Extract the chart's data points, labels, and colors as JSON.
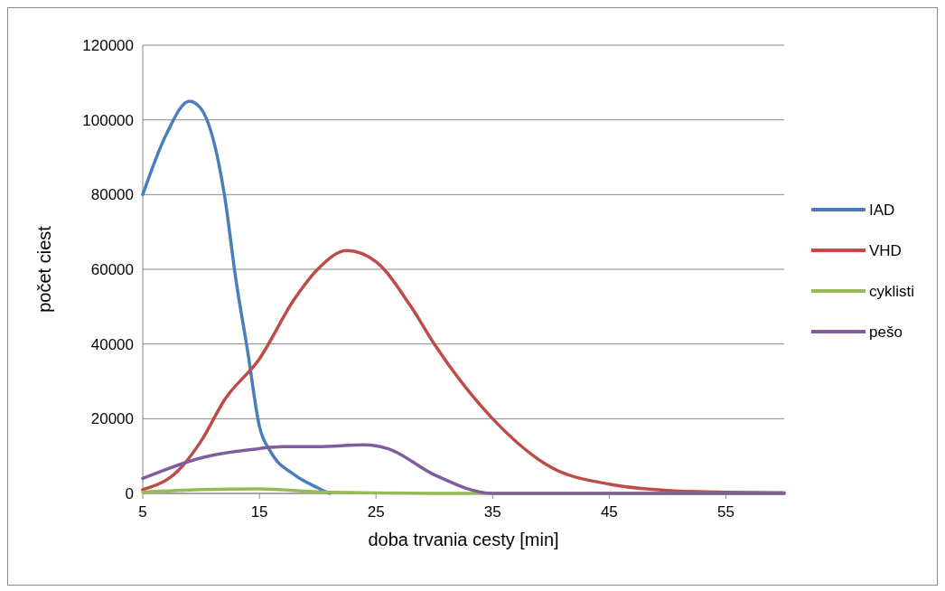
{
  "chart_data": {
    "type": "line",
    "xlabel": "doba trvania cesty [min]",
    "ylabel": "počet ciest",
    "xlim": [
      5,
      60
    ],
    "xticks": [
      5,
      15,
      25,
      35,
      45,
      55
    ],
    "ylim": [
      0,
      120000
    ],
    "yticks": [
      0,
      20000,
      40000,
      60000,
      80000,
      100000,
      120000
    ],
    "grid": "y",
    "legend": "right",
    "line_style": "solid",
    "marker": "none",
    "series": [
      {
        "name": "IAD",
        "color": "#4a7ebb",
        "x": [
          5,
          7,
          9,
          10,
          12,
          13,
          14,
          15,
          16,
          18,
          20,
          21
        ],
        "values": [
          80000,
          96000,
          105000,
          103000,
          80000,
          57000,
          38000,
          18000,
          11000,
          5000,
          1500,
          0
        ]
      },
      {
        "name": "VHD",
        "color": "#be4b48",
        "x": [
          5,
          8,
          10,
          12,
          15,
          18,
          20,
          22.5,
          25,
          28,
          30,
          35,
          40,
          45,
          50,
          55,
          60
        ],
        "values": [
          1000,
          6000,
          14000,
          25000,
          36000,
          52000,
          60000,
          65000,
          62000,
          50000,
          40000,
          20000,
          7000,
          2500,
          800,
          300,
          200
        ]
      },
      {
        "name": "cyklisti",
        "color": "#98b954",
        "x": [
          5,
          10,
          15,
          20,
          25,
          35,
          60
        ],
        "values": [
          300,
          1000,
          1200,
          400,
          100,
          0,
          0
        ]
      },
      {
        "name": "pešo",
        "color": "#7d5fa0",
        "x": [
          5,
          10,
          15,
          17,
          20,
          24,
          26,
          30,
          35,
          40,
          60
        ],
        "values": [
          4000,
          9500,
          12000,
          12500,
          12500,
          13000,
          12000,
          5000,
          0,
          0,
          0
        ]
      }
    ]
  }
}
